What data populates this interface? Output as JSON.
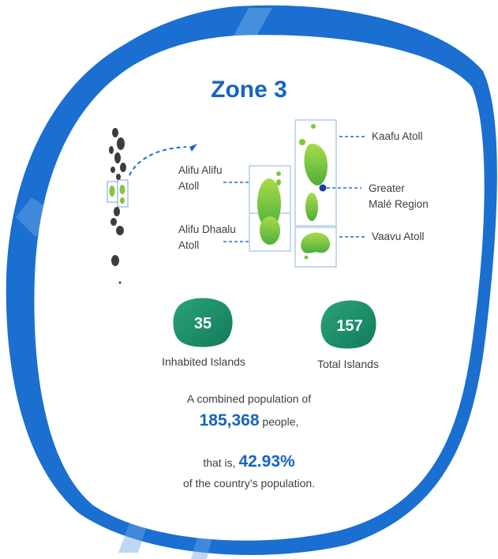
{
  "title": "Zone 3",
  "atolls": {
    "alifu_alifu": [
      "Alifu Alifu",
      "Atoll"
    ],
    "alifu_dhaalu": [
      "Alifu Dhaalu",
      "Atoll"
    ],
    "kaafu": "Kaafu Atoll",
    "greater_male": [
      "Greater",
      "Malé Region"
    ],
    "vaavu": "Vaavu Atoll"
  },
  "stats": {
    "inhabited": {
      "value": "35",
      "label": "Inhabited Islands"
    },
    "total": {
      "value": "157",
      "label": "Total Islands"
    }
  },
  "population": {
    "line1": "A combined population of",
    "count": "185,368",
    "count_suffix": " people,",
    "share_prefix": "that is, ",
    "share": "42.93%",
    "line_last": "of the country’s population."
  },
  "colors": {
    "blue_frame": "#1a6fd0",
    "title_blue": "#1565c0",
    "stat_green": "#1f8f6a",
    "island_green": "#7ec83b",
    "map_dark": "#3d3d3d"
  }
}
